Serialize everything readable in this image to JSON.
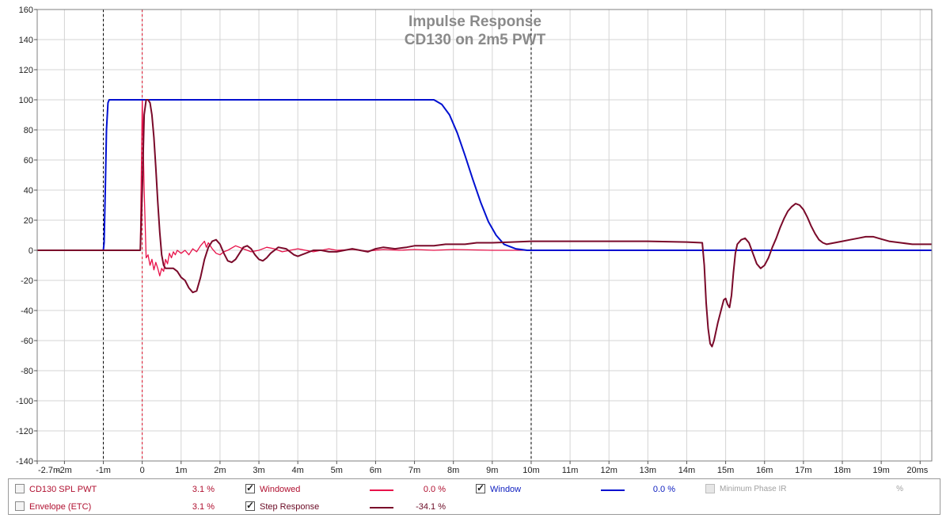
{
  "chart_data": {
    "type": "line",
    "title": "Impulse Response",
    "subtitle": "CD130 on 2m5 PWT",
    "xlabel": "",
    "ylabel": "",
    "xlim": [
      -2.7,
      20.3
    ],
    "ylim": [
      -140,
      160
    ],
    "grid": true,
    "x_ticks": [
      -2.7,
      -2,
      -1,
      0,
      1,
      2,
      3,
      4,
      5,
      6,
      7,
      8,
      9,
      10,
      11,
      12,
      13,
      14,
      15,
      16,
      17,
      18,
      19,
      20
    ],
    "x_tick_labels": [
      "-2.7m",
      "-2m",
      "-1m",
      "0",
      "1m",
      "2m",
      "3m",
      "4m",
      "5m",
      "6m",
      "7m",
      "8m",
      "9m",
      "10m",
      "11m",
      "12m",
      "13m",
      "14m",
      "15m",
      "16m",
      "17m",
      "18m",
      "19m",
      "20ms"
    ],
    "y_ticks": [
      160,
      140,
      120,
      100,
      80,
      60,
      40,
      20,
      0,
      -20,
      -40,
      -60,
      -80,
      -100,
      -120,
      -140
    ],
    "vlines": [
      {
        "x": -1.0,
        "color": "#000000"
      },
      {
        "x": 0.0,
        "color": "#e0102a"
      },
      {
        "x": 10.0,
        "color": "#000000"
      }
    ],
    "series": [
      {
        "name": "Windowed",
        "color": "#e8124a",
        "points": [
          [
            -2.7,
            0
          ],
          [
            -0.05,
            0
          ],
          [
            0.0,
            100
          ],
          [
            0.05,
            40
          ],
          [
            0.1,
            -5
          ],
          [
            0.15,
            -3
          ],
          [
            0.2,
            -10
          ],
          [
            0.25,
            -6
          ],
          [
            0.3,
            -13
          ],
          [
            0.35,
            -8
          ],
          [
            0.4,
            -12
          ],
          [
            0.45,
            -17
          ],
          [
            0.5,
            -12
          ],
          [
            0.55,
            -14
          ],
          [
            0.6,
            -6
          ],
          [
            0.65,
            -9
          ],
          [
            0.7,
            -2
          ],
          [
            0.75,
            -5
          ],
          [
            0.8,
            -1
          ],
          [
            0.85,
            -3
          ],
          [
            0.9,
            0
          ],
          [
            1.0,
            -2
          ],
          [
            1.1,
            0
          ],
          [
            1.2,
            -3
          ],
          [
            1.3,
            1
          ],
          [
            1.4,
            -1
          ],
          [
            1.5,
            3
          ],
          [
            1.6,
            6
          ],
          [
            1.65,
            2
          ],
          [
            1.7,
            5
          ],
          [
            1.8,
            1
          ],
          [
            1.9,
            -2
          ],
          [
            2.0,
            -3
          ],
          [
            2.1,
            -1
          ],
          [
            2.2,
            0
          ],
          [
            2.4,
            3
          ],
          [
            2.6,
            1
          ],
          [
            2.8,
            -1
          ],
          [
            3.0,
            0
          ],
          [
            3.2,
            2
          ],
          [
            3.4,
            1
          ],
          [
            3.6,
            -1
          ],
          [
            3.8,
            0
          ],
          [
            4.0,
            1
          ],
          [
            4.2,
            0
          ],
          [
            4.4,
            -1
          ],
          [
            4.6,
            0
          ],
          [
            4.8,
            1
          ],
          [
            5.0,
            0
          ],
          [
            5.4,
            0.5
          ],
          [
            5.8,
            -0.5
          ],
          [
            6.2,
            0.5
          ],
          [
            6.6,
            0
          ],
          [
            7.0,
            0.5
          ],
          [
            7.5,
            0
          ],
          [
            8.0,
            0.5
          ],
          [
            9.0,
            0
          ],
          [
            10.0,
            0
          ]
        ]
      },
      {
        "name": "Window",
        "color": "#0010d0",
        "points": [
          [
            -2.7,
            0
          ],
          [
            -1.0,
            0
          ],
          [
            -0.98,
            5
          ],
          [
            -0.95,
            40
          ],
          [
            -0.92,
            80
          ],
          [
            -0.88,
            98
          ],
          [
            -0.85,
            100
          ],
          [
            7.5,
            100
          ],
          [
            7.7,
            97
          ],
          [
            7.9,
            90
          ],
          [
            8.1,
            78
          ],
          [
            8.3,
            63
          ],
          [
            8.5,
            47
          ],
          [
            8.7,
            32
          ],
          [
            8.9,
            19
          ],
          [
            9.1,
            10
          ],
          [
            9.3,
            4
          ],
          [
            9.6,
            1
          ],
          [
            9.9,
            0
          ],
          [
            20.3,
            0
          ]
        ]
      },
      {
        "name": "Step Response",
        "color": "#7a0a2a",
        "points": [
          [
            -2.7,
            0
          ],
          [
            -0.05,
            0
          ],
          [
            0.0,
            40
          ],
          [
            0.05,
            90
          ],
          [
            0.1,
            100
          ],
          [
            0.15,
            100
          ],
          [
            0.2,
            98
          ],
          [
            0.25,
            90
          ],
          [
            0.3,
            75
          ],
          [
            0.35,
            55
          ],
          [
            0.4,
            32
          ],
          [
            0.45,
            12
          ],
          [
            0.5,
            -3
          ],
          [
            0.55,
            -10
          ],
          [
            0.6,
            -12
          ],
          [
            0.7,
            -12
          ],
          [
            0.8,
            -12
          ],
          [
            0.9,
            -14
          ],
          [
            1.0,
            -18
          ],
          [
            1.1,
            -20
          ],
          [
            1.2,
            -25
          ],
          [
            1.3,
            -28
          ],
          [
            1.4,
            -27
          ],
          [
            1.5,
            -18
          ],
          [
            1.6,
            -6
          ],
          [
            1.7,
            2
          ],
          [
            1.8,
            6
          ],
          [
            1.9,
            7
          ],
          [
            2.0,
            4
          ],
          [
            2.1,
            -2
          ],
          [
            2.2,
            -7
          ],
          [
            2.3,
            -8
          ],
          [
            2.4,
            -6
          ],
          [
            2.5,
            -2
          ],
          [
            2.6,
            2
          ],
          [
            2.7,
            3
          ],
          [
            2.8,
            1
          ],
          [
            2.9,
            -3
          ],
          [
            3.0,
            -6
          ],
          [
            3.1,
            -7
          ],
          [
            3.2,
            -5
          ],
          [
            3.3,
            -2
          ],
          [
            3.5,
            2
          ],
          [
            3.7,
            1
          ],
          [
            3.9,
            -3
          ],
          [
            4.0,
            -4
          ],
          [
            4.2,
            -2
          ],
          [
            4.4,
            0
          ],
          [
            4.6,
            0
          ],
          [
            4.8,
            -1
          ],
          [
            5.0,
            -1
          ],
          [
            5.2,
            0
          ],
          [
            5.4,
            1
          ],
          [
            5.6,
            0
          ],
          [
            5.8,
            -1
          ],
          [
            6.0,
            1
          ],
          [
            6.2,
            2
          ],
          [
            6.5,
            1
          ],
          [
            6.8,
            2
          ],
          [
            7.0,
            3
          ],
          [
            7.3,
            3
          ],
          [
            7.5,
            3
          ],
          [
            7.8,
            4
          ],
          [
            8.0,
            4
          ],
          [
            8.3,
            4
          ],
          [
            8.6,
            5
          ],
          [
            9.0,
            5
          ],
          [
            9.5,
            5.5
          ],
          [
            10.0,
            6
          ],
          [
            10.5,
            6
          ],
          [
            11.0,
            6
          ],
          [
            12.0,
            6
          ],
          [
            13.0,
            6
          ],
          [
            14.0,
            5.5
          ],
          [
            14.4,
            5
          ],
          [
            14.45,
            -10
          ],
          [
            14.5,
            -35
          ],
          [
            14.55,
            -52
          ],
          [
            14.6,
            -62
          ],
          [
            14.65,
            -64
          ],
          [
            14.7,
            -60
          ],
          [
            14.8,
            -48
          ],
          [
            14.9,
            -38
          ],
          [
            14.95,
            -33
          ],
          [
            15.0,
            -32
          ],
          [
            15.05,
            -36
          ],
          [
            15.1,
            -38
          ],
          [
            15.15,
            -30
          ],
          [
            15.2,
            -15
          ],
          [
            15.25,
            -2
          ],
          [
            15.3,
            4
          ],
          [
            15.4,
            7
          ],
          [
            15.5,
            8
          ],
          [
            15.6,
            5
          ],
          [
            15.7,
            -2
          ],
          [
            15.8,
            -9
          ],
          [
            15.9,
            -12
          ],
          [
            16.0,
            -10
          ],
          [
            16.1,
            -5
          ],
          [
            16.2,
            2
          ],
          [
            16.3,
            8
          ],
          [
            16.4,
            15
          ],
          [
            16.5,
            21
          ],
          [
            16.6,
            26
          ],
          [
            16.7,
            29
          ],
          [
            16.8,
            31
          ],
          [
            16.9,
            30
          ],
          [
            17.0,
            27
          ],
          [
            17.1,
            22
          ],
          [
            17.2,
            16
          ],
          [
            17.3,
            11
          ],
          [
            17.4,
            7
          ],
          [
            17.5,
            5
          ],
          [
            17.6,
            4
          ],
          [
            17.8,
            5
          ],
          [
            18.0,
            6
          ],
          [
            18.2,
            7
          ],
          [
            18.4,
            8
          ],
          [
            18.6,
            9
          ],
          [
            18.8,
            9
          ],
          [
            19.0,
            7.5
          ],
          [
            19.2,
            6
          ],
          [
            19.5,
            5
          ],
          [
            19.8,
            4
          ],
          [
            20.3,
            4
          ]
        ]
      }
    ]
  },
  "legend": {
    "row1": {
      "item1": {
        "label": "CD130 SPL PWT",
        "value": "3.1 %",
        "checked": false
      },
      "item2": {
        "label": "Windowed",
        "value": "0.0 %",
        "checked": true,
        "color": "#e8124a"
      },
      "item3": {
        "label": "Window",
        "value": "0.0 %",
        "checked": true,
        "color": "#0010d0"
      },
      "item4": {
        "label": "Minimum Phase IR",
        "value": "%",
        "checked": false,
        "disabled": true
      }
    },
    "row2": {
      "item1": {
        "label": "Envelope (ETC)",
        "value": "3.1 %",
        "checked": false
      },
      "item2": {
        "label": "Step Response",
        "value": "-34.1 %",
        "checked": true,
        "color": "#7a0a2a"
      }
    }
  }
}
